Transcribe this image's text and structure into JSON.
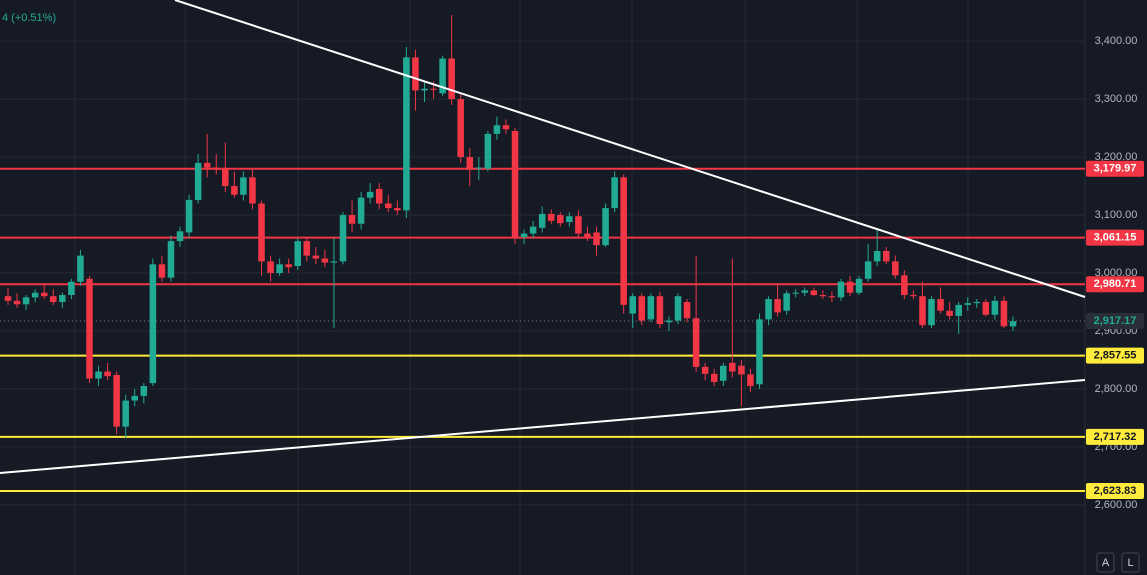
{
  "chart_data": {
    "type": "candlestick",
    "header": "4 (+0.51%)",
    "buttons": [
      "A",
      "L"
    ],
    "up_color": "#22ab94",
    "down_color": "#f23645",
    "ylim": [
      2479,
      3471
    ],
    "yticks": [
      {
        "value": 2600,
        "label": "2,600.00"
      },
      {
        "value": 2700,
        "label": "2,700.00"
      },
      {
        "value": 2800,
        "label": "2,800.00"
      },
      {
        "value": 2900,
        "label": "2,900.00"
      },
      {
        "value": 3000,
        "label": "3,000.00"
      },
      {
        "value": 3100,
        "label": "3,100.00"
      },
      {
        "value": 3200,
        "label": "3,200.00"
      },
      {
        "value": 3300,
        "label": "3,300.00"
      },
      {
        "value": 3400,
        "label": "3,400.00"
      }
    ],
    "grid": true,
    "levels": [
      {
        "value": 3179.97,
        "label": "3,179.97",
        "color": "#f23645"
      },
      {
        "value": 3061.15,
        "label": "3,061.15",
        "color": "#f23645"
      },
      {
        "value": 2980.71,
        "label": "2,980.71",
        "color": "#f23645"
      },
      {
        "value": 2857.55,
        "label": "2,857.55",
        "color": "#ffeb3b"
      },
      {
        "value": 2717.32,
        "label": "2,717.32",
        "color": "#ffeb3b"
      },
      {
        "value": 2623.83,
        "label": "2,623.83",
        "color": "#ffeb3b"
      }
    ],
    "last_price": {
      "value": 2917.17,
      "label": "2,917.17"
    },
    "open": [
      2960,
      2952,
      2946,
      2958,
      2966,
      2960,
      2950,
      2962,
      2985,
      2990,
      2818,
      2830,
      2824,
      2735,
      2780,
      2788,
      2810,
      3015,
      2992,
      3055,
      3070,
      3126,
      3190,
      3182,
      3180,
      3150,
      3135,
      3165,
      3120,
      3020,
      3000,
      3015,
      3012,
      3055,
      3030,
      3025,
      3018,
      3020,
      3100,
      3085,
      3130,
      3145,
      3120,
      3112,
      3108,
      3372,
      3315,
      3318,
      3310,
      3370,
      3300,
      3200,
      3180,
      3180,
      3240,
      3255,
      3245,
      3062,
      3068,
      3078,
      3102,
      3100,
      3088,
      3098,
      3068,
      3070,
      3048,
      3112,
      3165,
      2930,
      2960,
      2920,
      2960,
      2915,
      2918,
      2950,
      2922,
      2838,
      2826,
      2814,
      2845,
      2840,
      2825,
      2808,
      2920,
      2955,
      2935,
      2965,
      2966,
      2970,
      2962,
      2960,
      2958,
      2985,
      2966,
      2990,
      3020,
      3038,
      3020,
      2996,
      2962,
      2960,
      2910,
      2955,
      2935,
      2926,
      2945,
      2948,
      2950,
      2928,
      2952,
      2908
    ],
    "high": [
      2975,
      2965,
      2962,
      2972,
      2980,
      2972,
      2966,
      2990,
      3040,
      2995,
      2840,
      2845,
      2830,
      2790,
      2800,
      2810,
      3025,
      3030,
      3065,
      3080,
      3135,
      3205,
      3240,
      3205,
      3225,
      3175,
      3175,
      3180,
      3125,
      3030,
      3025,
      3025,
      3060,
      3060,
      3045,
      3040,
      3060,
      3105,
      3125,
      3140,
      3155,
      3155,
      3135,
      3125,
      3390,
      3385,
      3330,
      3330,
      3375,
      3445,
      3310,
      3215,
      3200,
      3245,
      3270,
      3265,
      3250,
      3075,
      3090,
      3115,
      3110,
      3105,
      3105,
      3108,
      3080,
      3080,
      3120,
      3175,
      3170,
      2965,
      2965,
      2965,
      2968,
      2925,
      2965,
      2955,
      3030,
      2845,
      2835,
      2845,
      3025,
      2850,
      2835,
      2930,
      2960,
      2980,
      2970,
      2972,
      2975,
      2975,
      2970,
      2968,
      2990,
      2995,
      2995,
      3050,
      3075,
      3045,
      3030,
      3005,
      2970,
      2985,
      2960,
      2975,
      2950,
      2950,
      2958,
      2955,
      2955,
      2960,
      2960,
      2925
    ],
    "low": [
      2945,
      2940,
      2936,
      2950,
      2955,
      2945,
      2940,
      2955,
      2978,
      2810,
      2805,
      2815,
      2722,
      2715,
      2770,
      2775,
      2805,
      2985,
      2985,
      3045,
      3060,
      3120,
      3165,
      3170,
      3140,
      3130,
      3125,
      3110,
      2995,
      2985,
      2995,
      3000,
      3005,
      3020,
      3015,
      3010,
      2905,
      3015,
      3070,
      3075,
      3120,
      3110,
      3105,
      3100,
      3095,
      3280,
      3295,
      3300,
      3305,
      3290,
      3190,
      3150,
      3160,
      3175,
      3230,
      3240,
      3050,
      3050,
      3060,
      3070,
      3085,
      3080,
      3080,
      3060,
      3055,
      3030,
      3045,
      3105,
      2930,
      2905,
      2910,
      2915,
      2905,
      2900,
      2912,
      2915,
      2830,
      2815,
      2805,
      2805,
      2820,
      2770,
      2795,
      2800,
      2910,
      2925,
      2928,
      2958,
      2960,
      2960,
      2955,
      2950,
      2952,
      2960,
      2962,
      2985,
      3012,
      3015,
      2990,
      2955,
      2955,
      2905,
      2905,
      2930,
      2920,
      2895,
      2935,
      2940,
      2925,
      2920,
      2905,
      2900
    ],
    "close": [
      2952,
      2946,
      2958,
      2966,
      2960,
      2950,
      2962,
      2985,
      3030,
      2818,
      2830,
      2822,
      2735,
      2780,
      2788,
      2805,
      3015,
      2992,
      3055,
      3072,
      3126,
      3190,
      3182,
      3178,
      3150,
      3135,
      3165,
      3120,
      3020,
      3000,
      3015,
      3010,
      3055,
      3030,
      3025,
      3018,
      3020,
      3100,
      3085,
      3130,
      3140,
      3120,
      3112,
      3108,
      3372,
      3315,
      3318,
      3316,
      3370,
      3300,
      3200,
      3178,
      3182,
      3240,
      3255,
      3248,
      3062,
      3068,
      3080,
      3102,
      3090,
      3086,
      3098,
      3068,
      3062,
      3048,
      3112,
      3165,
      2945,
      2960,
      2918,
      2960,
      2912,
      2918,
      2960,
      2922,
      2838,
      2826,
      2812,
      2840,
      2830,
      2825,
      2805,
      2920,
      2955,
      2932,
      2965,
      2966,
      2970,
      2962,
      2960,
      2958,
      2985,
      2966,
      2990,
      3020,
      3038,
      3020,
      2996,
      2962,
      2960,
      2910,
      2955,
      2935,
      2926,
      2945,
      2948,
      2950,
      2928,
      2952,
      2908,
      2917
    ]
  }
}
